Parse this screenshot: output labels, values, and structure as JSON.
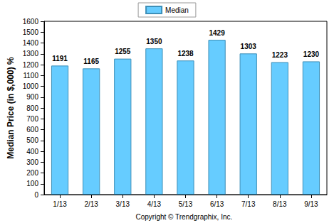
{
  "chart_data": {
    "type": "bar",
    "categories": [
      "1/13",
      "2/13",
      "3/13",
      "4/13",
      "5/13",
      "6/13",
      "7/13",
      "8/13",
      "9/13"
    ],
    "series": [
      {
        "name": "Median",
        "color": "#66ccff",
        "values": [
          1191,
          1165,
          1255,
          1350,
          1238,
          1429,
          1303,
          1223,
          1230
        ]
      }
    ],
    "ylabel": "Median Price (in $,000) %",
    "annotations": [
      "Copyright © Trendgraphix, Inc."
    ],
    "ylim": [
      0,
      1600
    ],
    "yticks": [
      0,
      100,
      200,
      300,
      400,
      500,
      600,
      700,
      800,
      900,
      1000,
      1100,
      1200,
      1300,
      1400,
      1500,
      1600
    ],
    "grid": false,
    "legend": "top",
    "data_labels": true
  }
}
